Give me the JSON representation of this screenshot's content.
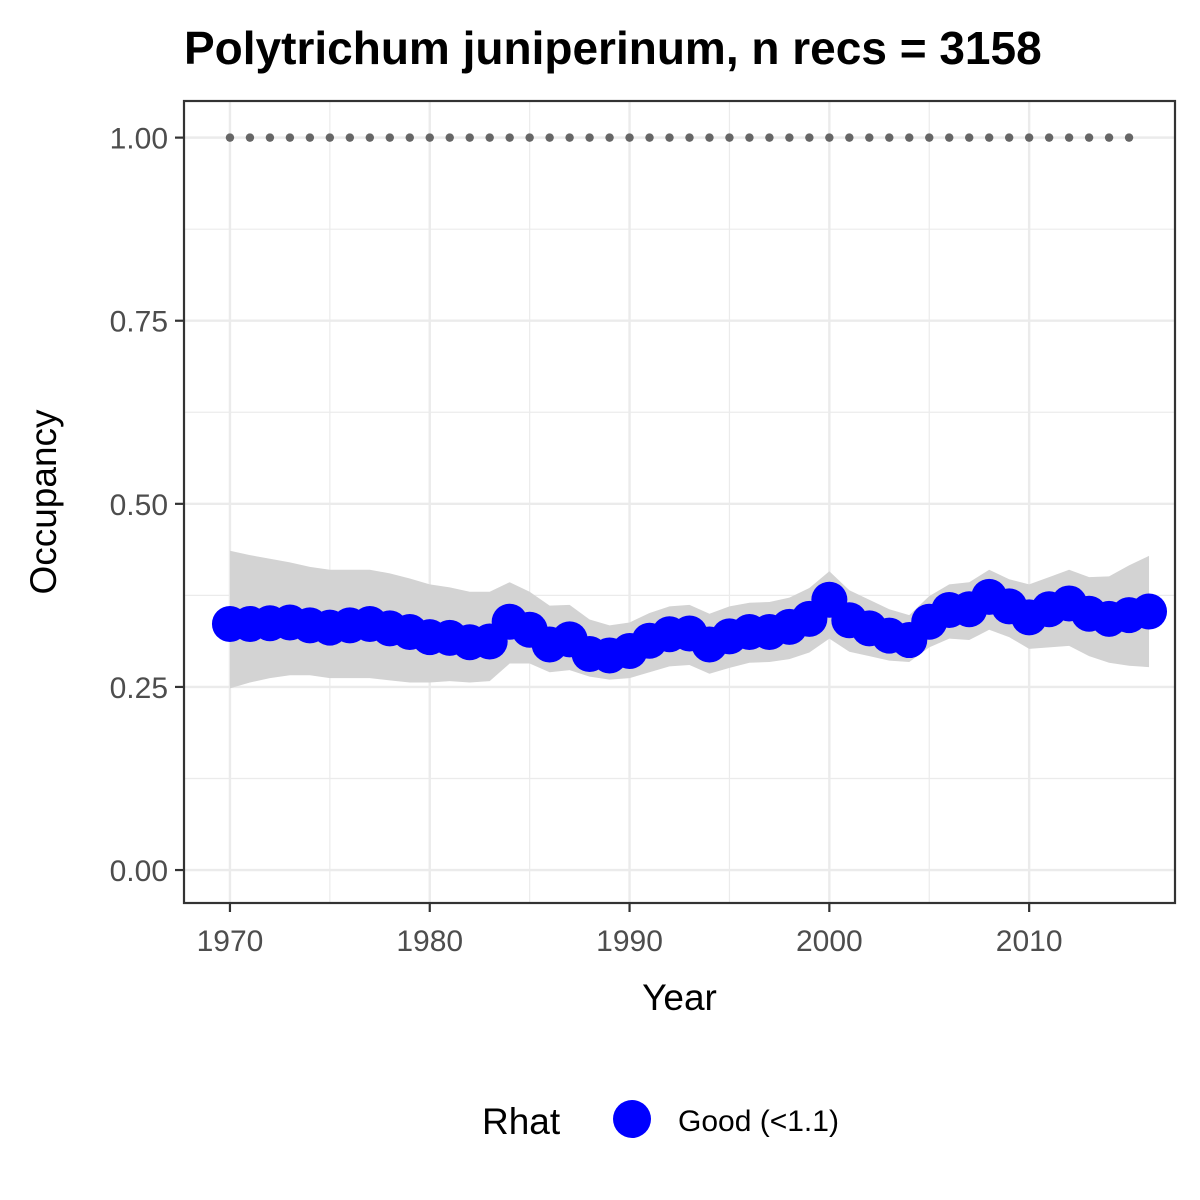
{
  "chart_data": {
    "type": "line",
    "title": "Polytrichum juniperinum, n recs = 3158",
    "xlabel": "Year",
    "ylabel": "Occupancy",
    "xlim": [
      1967.7,
      2017.3
    ],
    "ylim": [
      -0.045,
      1.05
    ],
    "x_ticks": [
      1970,
      1980,
      1990,
      2000,
      2010
    ],
    "y_ticks": [
      0.0,
      0.25,
      0.5,
      0.75,
      1.0
    ],
    "y_tick_labels": [
      "0.00",
      "0.25",
      "0.50",
      "0.75",
      "1.00"
    ],
    "grid": true,
    "x": [
      1970,
      1971,
      1972,
      1973,
      1974,
      1975,
      1976,
      1977,
      1978,
      1979,
      1980,
      1981,
      1982,
      1983,
      1984,
      1985,
      1986,
      1987,
      1988,
      1989,
      1990,
      1991,
      1992,
      1993,
      1994,
      1995,
      1996,
      1997,
      1998,
      1999,
      2000,
      2001,
      2002,
      2003,
      2004,
      2005,
      2006,
      2007,
      2008,
      2009,
      2010,
      2011,
      2012,
      2013,
      2014,
      2015,
      2016
    ],
    "series": [
      {
        "name": "Good (<1.1)",
        "color": "#0000ff",
        "values": [
          0.336,
          0.336,
          0.337,
          0.338,
          0.334,
          0.331,
          0.334,
          0.336,
          0.33,
          0.325,
          0.318,
          0.317,
          0.311,
          0.312,
          0.339,
          0.328,
          0.308,
          0.315,
          0.295,
          0.293,
          0.299,
          0.313,
          0.322,
          0.323,
          0.308,
          0.319,
          0.325,
          0.325,
          0.332,
          0.343,
          0.369,
          0.341,
          0.33,
          0.32,
          0.314,
          0.339,
          0.355,
          0.356,
          0.373,
          0.36,
          0.345,
          0.356,
          0.364,
          0.35,
          0.343,
          0.348,
          0.353
        ]
      }
    ],
    "ribbon": {
      "color": "#d3d3d3",
      "lower": [
        0.248,
        0.256,
        0.262,
        0.266,
        0.266,
        0.262,
        0.262,
        0.262,
        0.259,
        0.256,
        0.256,
        0.258,
        0.256,
        0.258,
        0.282,
        0.282,
        0.27,
        0.273,
        0.264,
        0.26,
        0.262,
        0.27,
        0.278,
        0.28,
        0.268,
        0.276,
        0.283,
        0.284,
        0.288,
        0.297,
        0.316,
        0.298,
        0.292,
        0.286,
        0.284,
        0.304,
        0.316,
        0.314,
        0.328,
        0.318,
        0.302,
        0.304,
        0.306,
        0.292,
        0.283,
        0.279,
        0.277
      ],
      "upper": [
        0.436,
        0.43,
        0.425,
        0.42,
        0.414,
        0.41,
        0.41,
        0.41,
        0.405,
        0.398,
        0.39,
        0.386,
        0.38,
        0.38,
        0.393,
        0.38,
        0.361,
        0.362,
        0.342,
        0.334,
        0.338,
        0.351,
        0.36,
        0.362,
        0.35,
        0.36,
        0.365,
        0.366,
        0.372,
        0.385,
        0.408,
        0.382,
        0.369,
        0.356,
        0.348,
        0.374,
        0.39,
        0.393,
        0.41,
        0.397,
        0.39,
        0.4,
        0.41,
        0.4,
        0.401,
        0.416,
        0.429
      ]
    },
    "reference": {
      "color": "#666666",
      "x_start": 1970,
      "x_end": 2015,
      "value": 1.0
    },
    "legend": {
      "title": "Rhat",
      "position": "bottom",
      "entries": [
        "Good (<1.1)"
      ]
    }
  }
}
